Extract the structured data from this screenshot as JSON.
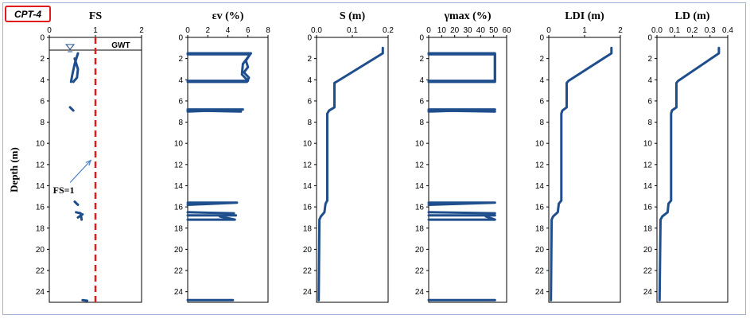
{
  "figure": {
    "label": "CPT-4"
  },
  "colors": {
    "series": "#1f4e8c",
    "fs_line": "#e31a1c",
    "badge_border": "#e31a1c",
    "frame": "#9db3d6",
    "axis": "#000000"
  },
  "chart_data": [
    {
      "id": "fs",
      "type": "line",
      "title": "FS",
      "ylabel": "Depth (m)",
      "xlim": [
        0,
        2
      ],
      "xticks": [
        0,
        1,
        2
      ],
      "ylim": [
        0,
        25
      ],
      "yticks": [
        0,
        2,
        4,
        6,
        8,
        10,
        12,
        14,
        16,
        18,
        20,
        22,
        24
      ],
      "gwt": {
        "label": "GWT",
        "depth": 1.2
      },
      "reference_line": {
        "x": 1,
        "label": "FS=1"
      },
      "segments": [
        [
          [
            0.62,
            1.5
          ],
          [
            0.55,
            2.5
          ],
          [
            0.5,
            3.5
          ],
          [
            0.47,
            4.2
          ]
        ],
        [
          [
            0.55,
            2.0
          ],
          [
            0.62,
            3.0
          ],
          [
            0.6,
            3.8
          ],
          [
            0.52,
            4.2
          ]
        ],
        [
          [
            0.45,
            6.6
          ],
          [
            0.52,
            6.9
          ]
        ],
        [
          [
            0.55,
            15.5
          ],
          [
            0.62,
            15.8
          ]
        ],
        [
          [
            0.58,
            16.5
          ],
          [
            0.68,
            16.6
          ],
          [
            0.7,
            17.2
          ]
        ],
        [
          [
            0.72,
            16.7
          ],
          [
            0.62,
            17.0
          ]
        ],
        [
          [
            0.72,
            24.8
          ],
          [
            0.82,
            24.85
          ]
        ]
      ]
    },
    {
      "id": "ev",
      "type": "line",
      "title": "εv (%)",
      "ylabel": "",
      "xlim": [
        0,
        8
      ],
      "xticks": [
        0,
        2,
        4,
        6,
        8
      ],
      "ylim": [
        0,
        25
      ],
      "yticks": [
        0,
        2,
        4,
        6,
        8,
        10,
        12,
        14,
        16,
        18,
        20,
        22,
        24
      ],
      "segments": [
        [
          [
            0,
            1.6
          ],
          [
            6.2,
            1.6
          ],
          [
            5.8,
            2.2
          ],
          [
            6.0,
            2.8
          ],
          [
            5.6,
            3.3
          ],
          [
            6.1,
            3.8
          ],
          [
            5.9,
            4.2
          ],
          [
            0,
            4.2
          ]
        ],
        [
          [
            0,
            1.5
          ],
          [
            6.3,
            1.5
          ],
          [
            5.5,
            2.5
          ],
          [
            5.4,
            3.5
          ],
          [
            6.0,
            4.1
          ],
          [
            0,
            4.1
          ]
        ],
        [
          [
            0,
            6.8
          ],
          [
            5.5,
            6.8
          ],
          [
            0,
            7.0
          ]
        ],
        [
          [
            0,
            6.9
          ],
          [
            5.3,
            7.0
          ]
        ],
        [
          [
            0,
            15.6
          ],
          [
            4.9,
            15.6
          ],
          [
            0,
            15.8
          ]
        ],
        [
          [
            0,
            16.5
          ],
          [
            4.6,
            16.6
          ],
          [
            3.2,
            16.9
          ],
          [
            4.7,
            17.2
          ],
          [
            0,
            17.2
          ]
        ],
        [
          [
            0,
            16.8
          ],
          [
            4.8,
            16.8
          ]
        ],
        [
          [
            0,
            24.8
          ],
          [
            4.5,
            24.8
          ]
        ]
      ]
    },
    {
      "id": "s",
      "type": "line",
      "title": "S (m)",
      "ylabel": "",
      "xlim": [
        0,
        0.2
      ],
      "xticks": [
        0.0,
        0.1,
        0.2
      ],
      "ylim": [
        0,
        25
      ],
      "yticks": [
        0,
        2,
        4,
        6,
        8,
        10,
        12,
        14,
        16,
        18,
        20,
        22,
        24
      ],
      "segments": [
        [
          [
            0.185,
            1.0
          ],
          [
            0.185,
            1.5
          ],
          [
            0.06,
            4.1
          ],
          [
            0.05,
            4.3
          ],
          [
            0.05,
            6.6
          ],
          [
            0.035,
            6.9
          ],
          [
            0.03,
            7.2
          ],
          [
            0.03,
            15.4
          ],
          [
            0.025,
            15.7
          ],
          [
            0.022,
            16.5
          ],
          [
            0.012,
            16.9
          ],
          [
            0.008,
            17.2
          ],
          [
            0.006,
            24.8
          ]
        ]
      ]
    },
    {
      "id": "gmax",
      "type": "line",
      "title": "γmax (%)",
      "ylabel": "",
      "xlim": [
        0,
        60
      ],
      "xticks": [
        0,
        10,
        20,
        30,
        40,
        50,
        60
      ],
      "ylim": [
        0,
        25
      ],
      "yticks": [
        0,
        2,
        4,
        6,
        8,
        10,
        12,
        14,
        16,
        18,
        20,
        22,
        24
      ],
      "segments": [
        [
          [
            0,
            1.6
          ],
          [
            51,
            1.6
          ],
          [
            51,
            4.1
          ],
          [
            0,
            4.1
          ]
        ],
        [
          [
            0,
            1.5
          ],
          [
            51,
            1.5
          ],
          [
            51,
            4.2
          ],
          [
            0,
            4.2
          ]
        ],
        [
          [
            0,
            6.8
          ],
          [
            51,
            6.8
          ],
          [
            0,
            7.0
          ]
        ],
        [
          [
            0,
            6.9
          ],
          [
            51,
            7.0
          ]
        ],
        [
          [
            0,
            15.6
          ],
          [
            51,
            15.6
          ],
          [
            0,
            15.8
          ]
        ],
        [
          [
            0,
            16.5
          ],
          [
            51,
            16.6
          ],
          [
            44,
            16.9
          ],
          [
            51,
            17.2
          ],
          [
            0,
            17.2
          ]
        ],
        [
          [
            0,
            16.8
          ],
          [
            51,
            16.8
          ]
        ],
        [
          [
            0,
            24.8
          ],
          [
            51,
            24.8
          ]
        ]
      ]
    },
    {
      "id": "ldi",
      "type": "line",
      "title": "LDI (m)",
      "ylabel": "",
      "xlim": [
        0,
        2
      ],
      "xticks": [
        0,
        1,
        2
      ],
      "ylim": [
        0,
        25
      ],
      "yticks": [
        0,
        2,
        4,
        6,
        8,
        10,
        12,
        14,
        16,
        18,
        20,
        22,
        24
      ],
      "segments": [
        [
          [
            1.75,
            1.0
          ],
          [
            1.75,
            1.5
          ],
          [
            0.55,
            4.1
          ],
          [
            0.5,
            4.3
          ],
          [
            0.5,
            6.6
          ],
          [
            0.38,
            6.9
          ],
          [
            0.35,
            7.2
          ],
          [
            0.35,
            15.4
          ],
          [
            0.28,
            15.7
          ],
          [
            0.25,
            16.5
          ],
          [
            0.12,
            16.9
          ],
          [
            0.08,
            17.2
          ],
          [
            0.06,
            24.8
          ]
        ]
      ]
    },
    {
      "id": "ld",
      "type": "line",
      "title": "LD (m)",
      "ylabel": "",
      "xlim": [
        0,
        0.4
      ],
      "xticks": [
        0.0,
        0.1,
        0.2,
        0.3,
        0.4
      ],
      "ylim": [
        0,
        25
      ],
      "yticks": [
        0,
        2,
        4,
        6,
        8,
        10,
        12,
        14,
        16,
        18,
        20,
        22,
        24
      ],
      "segments": [
        [
          [
            0.35,
            1.0
          ],
          [
            0.35,
            1.5
          ],
          [
            0.12,
            4.1
          ],
          [
            0.11,
            4.3
          ],
          [
            0.11,
            6.6
          ],
          [
            0.085,
            6.9
          ],
          [
            0.08,
            7.2
          ],
          [
            0.08,
            15.4
          ],
          [
            0.065,
            15.7
          ],
          [
            0.06,
            16.5
          ],
          [
            0.03,
            16.9
          ],
          [
            0.02,
            17.2
          ],
          [
            0.015,
            24.8
          ]
        ]
      ]
    }
  ]
}
